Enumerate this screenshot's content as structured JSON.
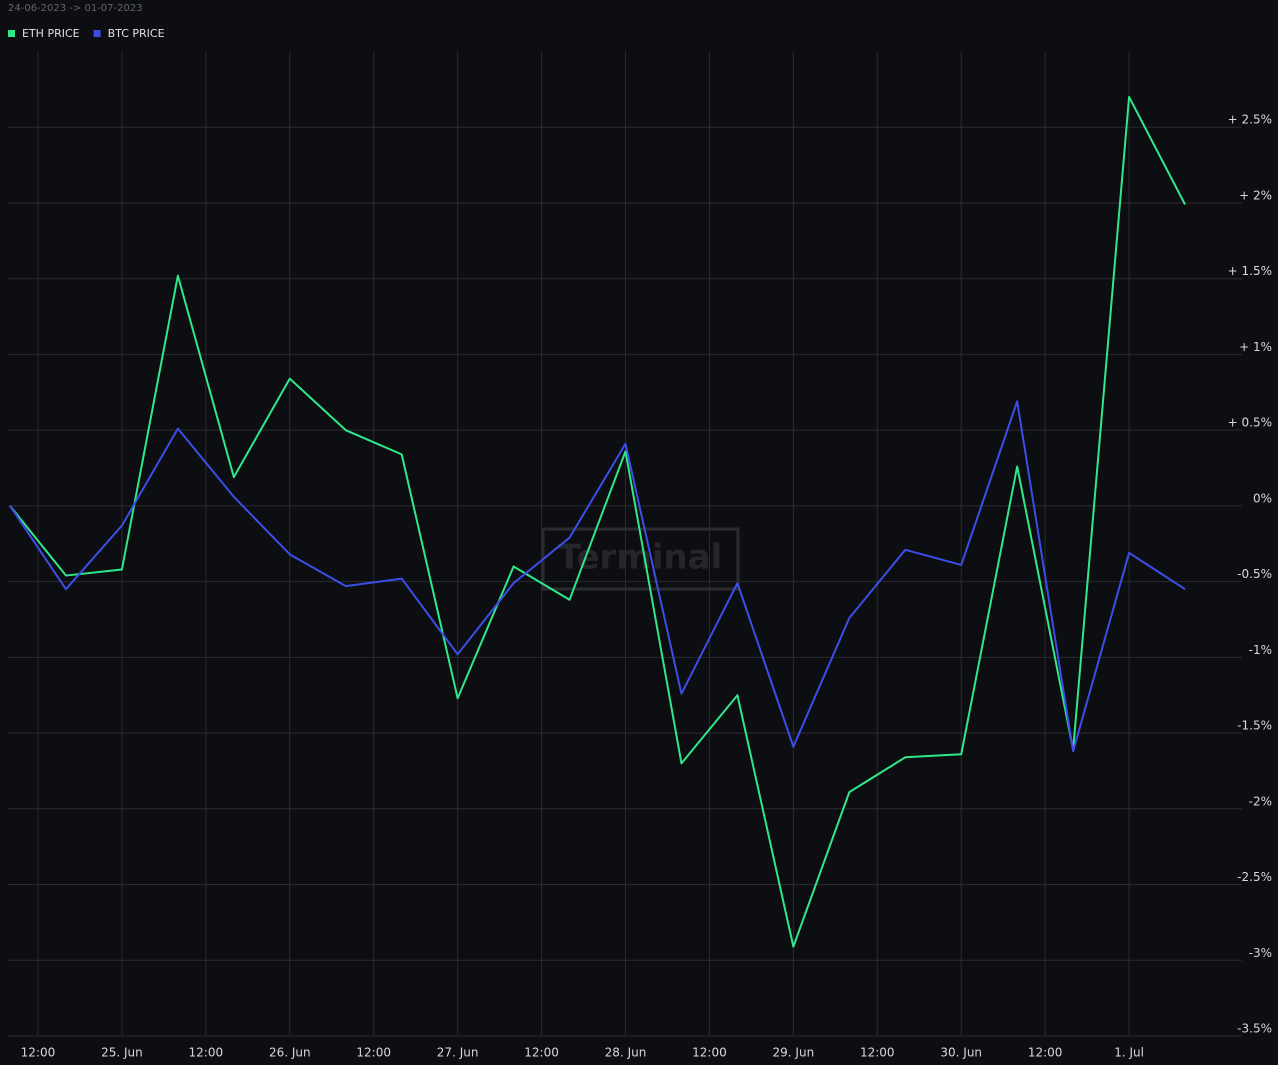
{
  "chart_data": {
    "type": "line",
    "subtitle": "24-06-2023 -> 01-07-2023",
    "watermark": "Terminal",
    "x": [
      "2023-06-24T08:00",
      "2023-06-24T16:00",
      "2023-06-25T00:00",
      "2023-06-25T08:00",
      "2023-06-25T16:00",
      "2023-06-26T00:00",
      "2023-06-26T08:00",
      "2023-06-26T16:00",
      "2023-06-27T00:00",
      "2023-06-27T08:00",
      "2023-06-27T16:00",
      "2023-06-28T00:00",
      "2023-06-28T08:00",
      "2023-06-28T16:00",
      "2023-06-29T00:00",
      "2023-06-29T08:00",
      "2023-06-29T16:00",
      "2023-06-30T00:00",
      "2023-06-30T08:00",
      "2023-06-30T16:00",
      "2023-07-01T00:00",
      "2023-07-01T08:00"
    ],
    "series": [
      {
        "name": "ETH PRICE",
        "color": "#2ee88a",
        "values": [
          0,
          -0.46,
          -0.42,
          1.52,
          0.19,
          0.84,
          0.5,
          0.34,
          -1.27,
          -0.4,
          -0.62,
          0.36,
          -1.7,
          -1.25,
          -2.91,
          -1.89,
          -1.66,
          -1.64,
          0.26,
          -1.61,
          2.7,
          1.99
        ]
      },
      {
        "name": "BTC PRICE",
        "color": "#3b4ee8",
        "values": [
          0,
          -0.55,
          -0.13,
          0.51,
          0.06,
          -0.32,
          -0.53,
          -0.48,
          -0.98,
          -0.51,
          -0.21,
          0.41,
          -1.24,
          -0.51,
          -1.59,
          -0.74,
          -0.29,
          -0.39,
          0.69,
          -1.62,
          -0.31,
          -0.55
        ]
      }
    ],
    "xlim": [
      "2023-06-24T08:00",
      "2023-07-01T16:00"
    ],
    "xticks": [
      {
        "value": "2023-06-24T12:00",
        "label": "12:00"
      },
      {
        "value": "2023-06-25T00:00",
        "label": "25. Jun"
      },
      {
        "value": "2023-06-25T12:00",
        "label": "12:00"
      },
      {
        "value": "2023-06-26T00:00",
        "label": "26. Jun"
      },
      {
        "value": "2023-06-26T12:00",
        "label": "12:00"
      },
      {
        "value": "2023-06-27T00:00",
        "label": "27. Jun"
      },
      {
        "value": "2023-06-27T12:00",
        "label": "12:00"
      },
      {
        "value": "2023-06-28T00:00",
        "label": "28. Jun"
      },
      {
        "value": "2023-06-28T12:00",
        "label": "12:00"
      },
      {
        "value": "2023-06-29T00:00",
        "label": "29. Jun"
      },
      {
        "value": "2023-06-29T12:00",
        "label": "12:00"
      },
      {
        "value": "2023-06-30T00:00",
        "label": "30. Jun"
      },
      {
        "value": "2023-06-30T12:00",
        "label": "12:00"
      },
      {
        "value": "2023-07-01T00:00",
        "label": "1. Jul"
      }
    ],
    "ylim": [
      -3.5,
      3.0
    ],
    "yticks": [
      {
        "value": 2.5,
        "label": "+ 2.5%"
      },
      {
        "value": 2,
        "label": "+ 2%"
      },
      {
        "value": 1.5,
        "label": "+ 1.5%"
      },
      {
        "value": 1,
        "label": "+ 1%"
      },
      {
        "value": 0.5,
        "label": "+ 0.5%"
      },
      {
        "value": 0,
        "label": "0%"
      },
      {
        "value": -0.5,
        "label": "-0.5%"
      },
      {
        "value": -1,
        "label": "-1%"
      },
      {
        "value": -1.5,
        "label": "-1.5%"
      },
      {
        "value": -2,
        "label": "-2%"
      },
      {
        "value": -2.5,
        "label": "-2.5%"
      },
      {
        "value": -3,
        "label": "-3%"
      },
      {
        "value": -3.5,
        "label": "-3.5%"
      }
    ],
    "grid": true,
    "legend": "top-left"
  }
}
